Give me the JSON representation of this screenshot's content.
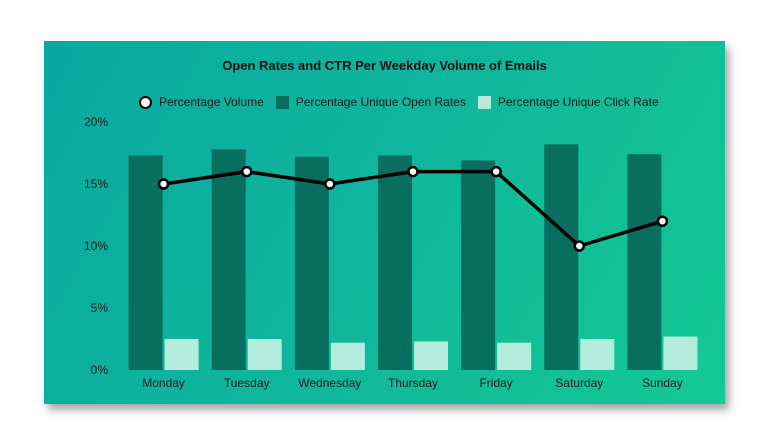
{
  "colors": {
    "open_rate_bar": "#086e5f",
    "click_rate_bar": "#b3ecdc",
    "volume_line": "#000000",
    "volume_marker_fill": "#ffffff"
  },
  "chart_data": {
    "type": "bar",
    "title": "Open Rates and CTR Per Weekday Volume of Emails",
    "xlabel": "",
    "ylabel": "",
    "ylim": [
      0,
      20
    ],
    "yticks": [
      "0%",
      "5%",
      "10%",
      "15%",
      "20%"
    ],
    "ytick_values": [
      0,
      5,
      10,
      15,
      20
    ],
    "categories": [
      "Monday",
      "Tuesday",
      "Wednesday",
      "Thursday",
      "Friday",
      "Saturday",
      "Sunday"
    ],
    "legend_position": "top",
    "series": [
      {
        "name": "Percentage Volume",
        "kind": "line",
        "values": [
          15,
          16,
          15,
          16,
          16,
          10,
          12
        ]
      },
      {
        "name": "Percentage Unique Open Rates",
        "kind": "bar",
        "values": [
          17.3,
          17.8,
          17.2,
          17.3,
          16.9,
          18.2,
          17.4
        ]
      },
      {
        "name": "Percentage Unique Click Rate",
        "kind": "bar",
        "values": [
          2.5,
          2.5,
          2.2,
          2.3,
          2.2,
          2.5,
          2.7
        ]
      }
    ]
  }
}
